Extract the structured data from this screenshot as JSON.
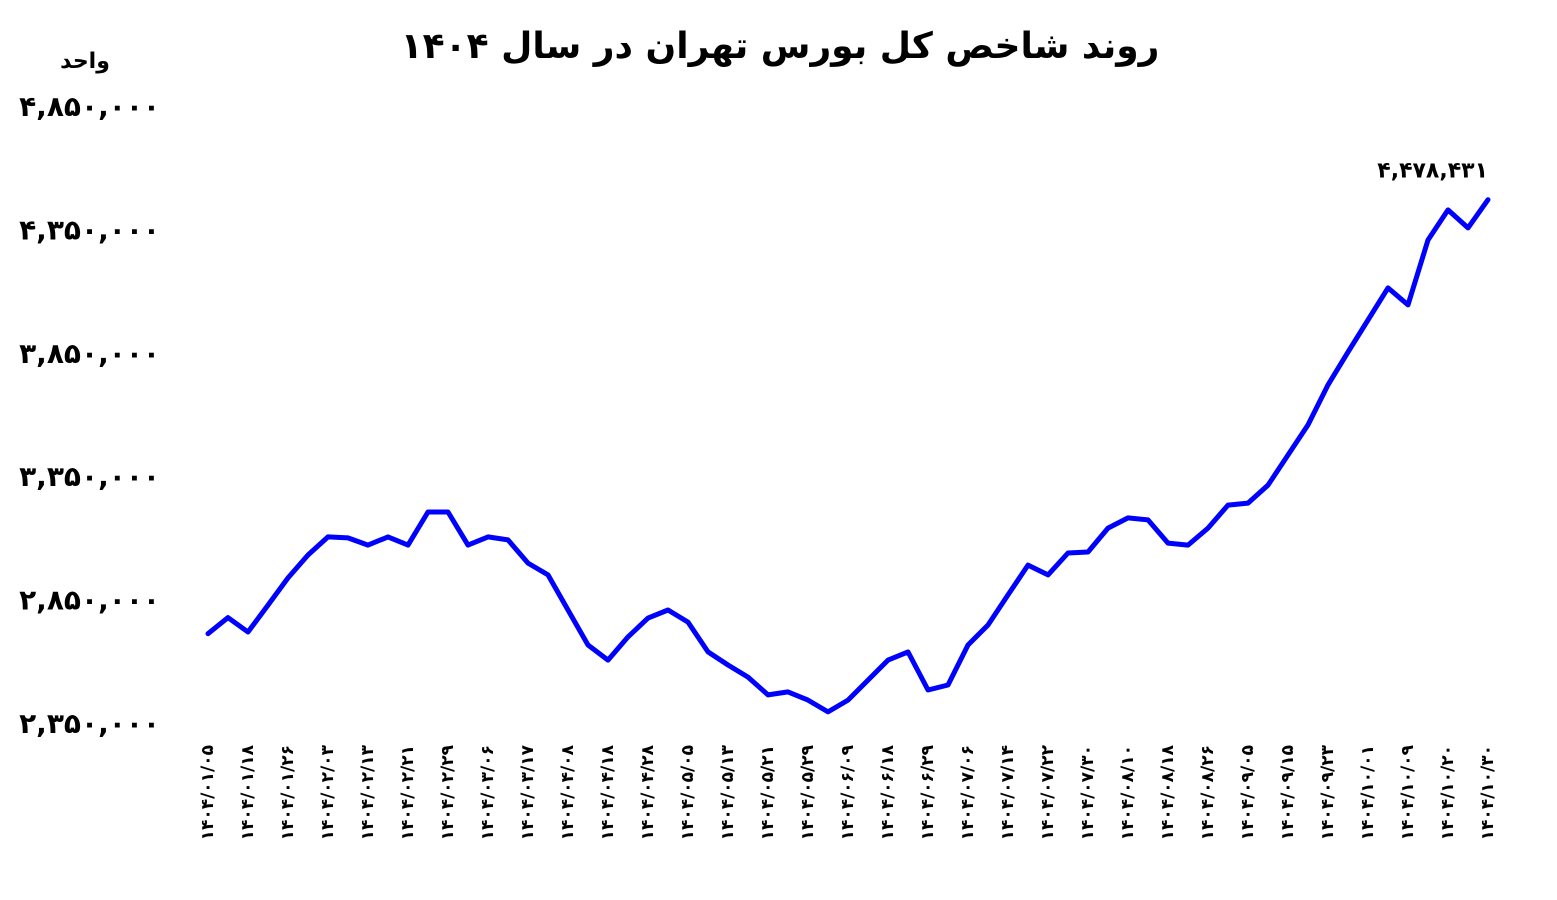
{
  "chart_data": {
    "type": "line",
    "title": "روند شاخص کل بورس تهران در سال ۱۴۰۴",
    "y_label": "واحد",
    "categories": [
      "۱۴۰۴/۰۱/۰۵",
      null,
      "۱۴۰۴/۰۱/۱۸",
      null,
      "۱۴۰۴/۰۱/۲۶",
      null,
      "۱۴۰۴/۰۲/۰۳",
      null,
      "۱۴۰۴/۰۲/۱۳",
      null,
      "۱۴۰۴/۰۲/۲۱",
      null,
      "۱۴۰۴/۰۲/۲۹",
      null,
      "۱۴۰۴/۰۳/۰۶",
      null,
      "۱۴۰۴/۰۳/۱۷",
      null,
      "۱۴۰۴/۰۴/۰۸",
      null,
      "۱۴۰۴/۰۴/۱۸",
      null,
      "۱۴۰۴/۰۴/۲۸",
      null,
      "۱۴۰۴/۰۵/۰۵",
      null,
      "۱۴۰۴/۰۵/۱۳",
      null,
      "۱۴۰۴/۰۵/۲۱",
      null,
      "۱۴۰۴/۰۵/۲۹",
      null,
      "۱۴۰۴/۰۶/۰۹",
      null,
      "۱۴۰۴/۰۶/۱۸",
      null,
      "۱۴۰۴/۰۶/۲۹",
      null,
      "۱۴۰۴/۰۷/۰۶",
      null,
      "۱۴۰۴/۰۷/۱۴",
      null,
      "۱۴۰۴/۰۷/۲۲",
      null,
      "۱۴۰۴/۰۷/۳۰",
      null,
      "۱۴۰۴/۰۸/۱۰",
      null,
      "۱۴۰۴/۰۸/۱۸",
      null,
      "۱۴۰۴/۰۸/۲۶",
      null,
      "۱۴۰۴/۰۹/۰۵",
      null,
      "۱۴۰۴/۰۹/۱۵",
      null,
      "۱۴۰۴/۰۹/۲۳",
      null,
      "۱۴۰۴/۱۰/۰۱",
      null,
      "۱۴۰۴/۱۰/۰۹",
      null,
      "۱۴۰۴/۱۰/۲۰",
      null,
      "۱۴۰۴/۱۰/۳۰"
    ],
    "series": [
      {
        "color": "#0000ff",
        "values": [
          2720000,
          2785000,
          2727000,
          2836000,
          2946000,
          3039000,
          3112000,
          3108000,
          3079000,
          3112000,
          3079000,
          3213000,
          3213000,
          3079000,
          3112000,
          3100000,
          3006000,
          2958000,
          2816000,
          2674000,
          2613000,
          2707000,
          2783000,
          2816000,
          2767000,
          2646000,
          2593000,
          2544000,
          2472000,
          2484000,
          2451000,
          2403000,
          2451000,
          2532000,
          2613000,
          2646000,
          2492000,
          2512000,
          2674000,
          2755000,
          2877000,
          2998000,
          2958000,
          3047000,
          3051000,
          3148000,
          3189000,
          3181000,
          3087000,
          3079000,
          3148000,
          3241000,
          3249000,
          3322000,
          3444000,
          3566000,
          3728000,
          3861000,
          3991000,
          4121000,
          4052000,
          4315000,
          4437000,
          4364000,
          4478431
        ],
        "value_labels": [
          null,
          null,
          null,
          null,
          null,
          null,
          null,
          null,
          null,
          null,
          null,
          null,
          null,
          null,
          null,
          null,
          null,
          null,
          null,
          null,
          null,
          null,
          null,
          null,
          null,
          null,
          null,
          null,
          null,
          null,
          null,
          null,
          null,
          null,
          null,
          null,
          null,
          null,
          null,
          null,
          null,
          null,
          null,
          null,
          null,
          null,
          null,
          null,
          null,
          null,
          null,
          null,
          null,
          null,
          null,
          null,
          null,
          null,
          null,
          null,
          null,
          null,
          null,
          null,
          "۴,۴۷۸,۴۳۱"
        ]
      }
    ],
    "ylim": [
      2350000,
      4850000
    ],
    "yticks": [
      {
        "value": 2350000,
        "label": "۲,۳۵۰,۰۰۰"
      },
      {
        "value": 2850000,
        "label": "۲,۸۵۰,۰۰۰"
      },
      {
        "value": 3350000,
        "label": "۳,۳۵۰,۰۰۰"
      },
      {
        "value": 3850000,
        "label": "۳,۸۵۰,۰۰۰"
      },
      {
        "value": 4350000,
        "label": "۴,۳۵۰,۰۰۰"
      },
      {
        "value": 4850000,
        "label": "۴,۸۵۰,۰۰۰"
      }
    ]
  }
}
